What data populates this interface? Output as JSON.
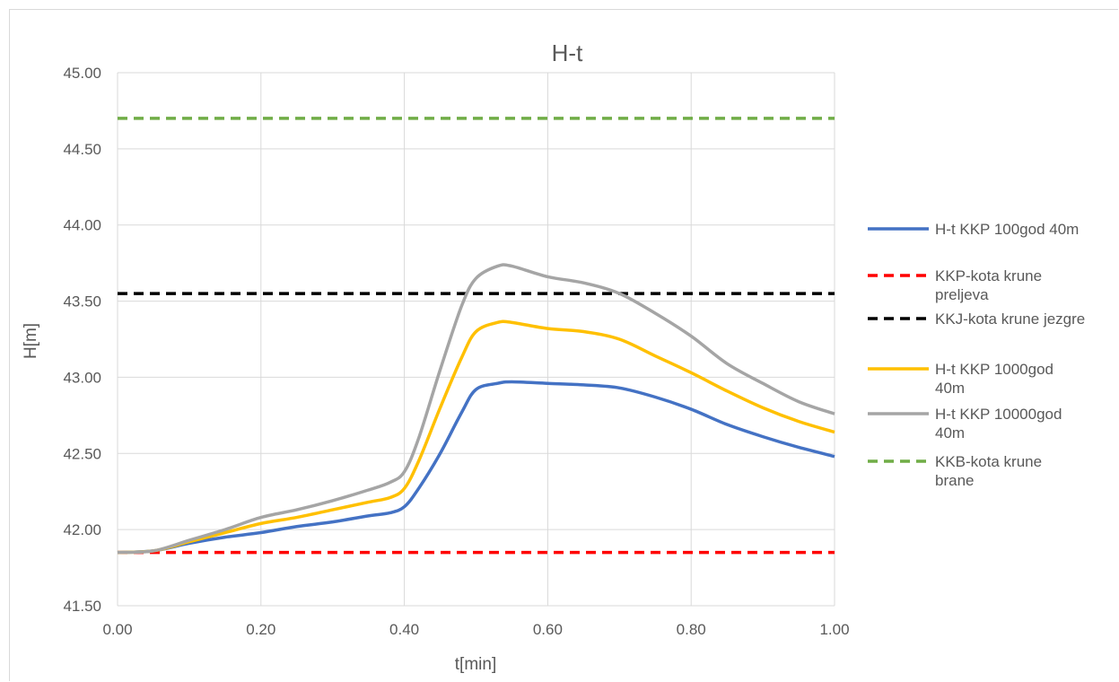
{
  "chart_data": {
    "type": "line",
    "title": "H-t",
    "xlabel": "t[min]",
    "ylabel": "H[m]",
    "xlim": [
      0,
      1
    ],
    "ylim": [
      41.5,
      45
    ],
    "x_ticks": [
      "0.00",
      "0.20",
      "0.40",
      "0.60",
      "0.80",
      "1.00"
    ],
    "y_ticks": [
      "41.50",
      "42.00",
      "42.50",
      "43.00",
      "43.50",
      "44.00",
      "44.50",
      "45.00"
    ],
    "grid": true,
    "legend_position": "right",
    "series": [
      {
        "name": "H-t KKP 100god 40m",
        "color": "#4472C4",
        "style": "solid",
        "x": [
          0.0,
          0.05,
          0.1,
          0.15,
          0.2,
          0.25,
          0.3,
          0.35,
          0.38,
          0.4,
          0.42,
          0.45,
          0.48,
          0.5,
          0.53,
          0.55,
          0.6,
          0.65,
          0.7,
          0.75,
          0.8,
          0.85,
          0.9,
          0.95,
          1.0
        ],
        "y": [
          41.85,
          41.86,
          41.91,
          41.95,
          41.98,
          42.02,
          42.05,
          42.09,
          42.11,
          42.15,
          42.27,
          42.5,
          42.77,
          42.92,
          42.96,
          42.97,
          42.96,
          42.95,
          42.93,
          42.87,
          42.79,
          42.69,
          42.61,
          42.54,
          42.48
        ]
      },
      {
        "name": "KKP-kota krune preljeva",
        "color": "#FF0000",
        "style": "dashed",
        "x": [
          0.0,
          1.0
        ],
        "y": [
          41.85,
          41.85
        ]
      },
      {
        "name": "KKJ-kota krune jezgre",
        "color": "#000000",
        "style": "dashed",
        "x": [
          0.0,
          1.0
        ],
        "y": [
          43.55,
          43.55
        ]
      },
      {
        "name": "H-t KKP 1000god 40m",
        "color": "#FFC000",
        "style": "solid",
        "x": [
          0.0,
          0.05,
          0.1,
          0.15,
          0.2,
          0.25,
          0.3,
          0.35,
          0.38,
          0.4,
          0.42,
          0.45,
          0.48,
          0.5,
          0.53,
          0.55,
          0.6,
          0.65,
          0.7,
          0.75,
          0.8,
          0.85,
          0.9,
          0.95,
          1.0
        ],
        "y": [
          41.85,
          41.86,
          41.92,
          41.98,
          42.04,
          42.08,
          42.13,
          42.18,
          42.21,
          42.27,
          42.45,
          42.8,
          43.13,
          43.3,
          43.36,
          43.36,
          43.32,
          43.3,
          43.25,
          43.14,
          43.03,
          42.91,
          42.8,
          42.71,
          42.64
        ]
      },
      {
        "name": "H-t KKP 10000god 40m",
        "color": "#A5A5A5",
        "style": "solid",
        "x": [
          0.0,
          0.05,
          0.1,
          0.15,
          0.2,
          0.25,
          0.3,
          0.35,
          0.38,
          0.4,
          0.42,
          0.45,
          0.48,
          0.5,
          0.53,
          0.55,
          0.6,
          0.65,
          0.7,
          0.75,
          0.8,
          0.85,
          0.9,
          0.95,
          1.0
        ],
        "y": [
          41.85,
          41.86,
          41.93,
          42.0,
          42.08,
          42.13,
          42.19,
          42.26,
          42.31,
          42.38,
          42.6,
          43.05,
          43.47,
          43.65,
          43.73,
          43.73,
          43.66,
          43.62,
          43.55,
          43.42,
          43.27,
          43.09,
          42.96,
          42.84,
          42.76
        ]
      },
      {
        "name": "KKB-kota krune brane",
        "color": "#70AD47",
        "style": "dashed",
        "x": [
          0.0,
          1.0
        ],
        "y": [
          44.7,
          44.7
        ]
      }
    ]
  }
}
